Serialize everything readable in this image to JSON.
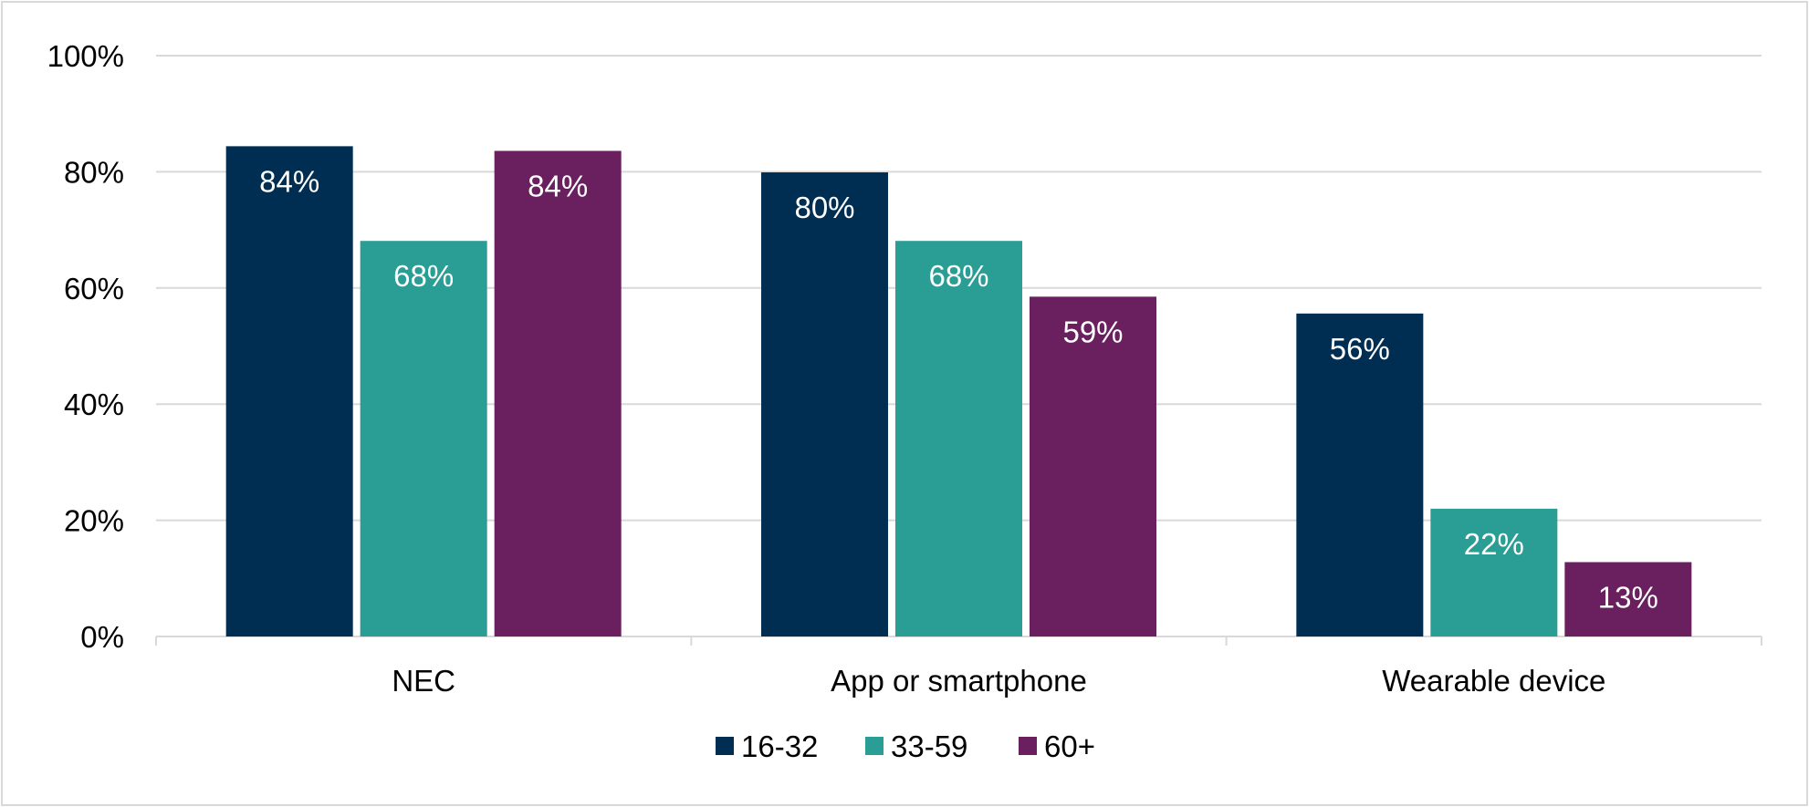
{
  "chart_data": {
    "type": "bar",
    "categories": [
      "NEC",
      "App or smartphone",
      "Wearable device"
    ],
    "series": [
      {
        "name": "16-32",
        "color": "#002d52",
        "values": [
          84.4,
          79.9,
          55.6
        ],
        "labels": [
          "84%",
          "80%",
          "56%"
        ]
      },
      {
        "name": "33-59",
        "color": "#2a9d94",
        "values": [
          68.1,
          68.1,
          22.0
        ],
        "labels": [
          "68%",
          "68%",
          "22%"
        ]
      },
      {
        "name": "60+",
        "color": "#6a1f5f",
        "values": [
          83.6,
          58.5,
          12.8
        ],
        "labels": [
          "84%",
          "59%",
          "13%"
        ]
      }
    ],
    "ylim": [
      0,
      100
    ],
    "yticks": [
      0,
      20,
      40,
      60,
      80,
      100
    ],
    "ytick_labels": [
      "0%",
      "20%",
      "40%",
      "60%",
      "80%",
      "100%"
    ],
    "grid": true,
    "legend": "bottom",
    "title": "",
    "xlabel": "",
    "ylabel": ""
  }
}
